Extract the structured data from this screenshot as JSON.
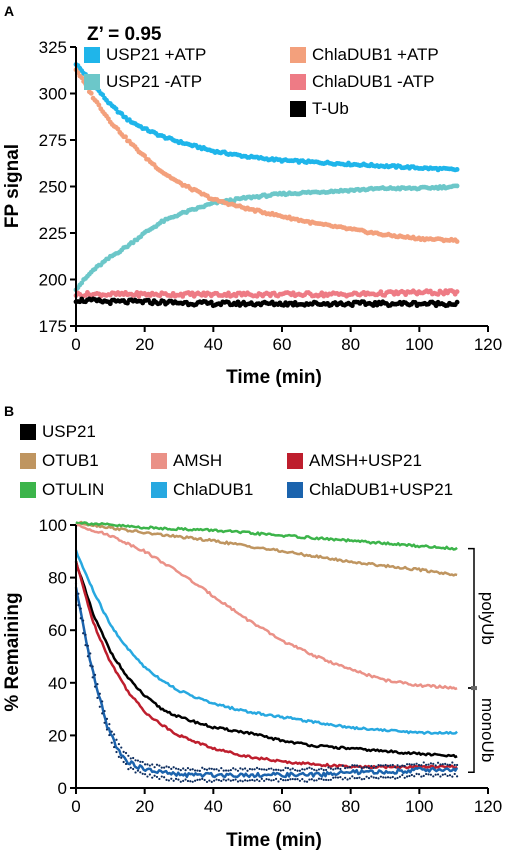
{
  "chart_data": [
    {
      "panel": "A",
      "type": "scatter",
      "annotation": "Z’ = 0.95",
      "xlabel": "Time (min)",
      "ylabel": "FP signal",
      "xlim": [
        0,
        120
      ],
      "ylim": [
        175,
        325
      ],
      "xticks": [
        0,
        20,
        40,
        60,
        80,
        100,
        120
      ],
      "yticks": [
        175,
        200,
        225,
        250,
        275,
        300,
        325
      ],
      "grid": false,
      "legend_position": "top",
      "series": [
        {
          "name": "USP21 +ATP",
          "color": "#1fb5ea",
          "x": [
            0,
            5,
            10,
            15,
            20,
            25,
            30,
            40,
            50,
            60,
            70,
            80,
            90,
            100,
            111
          ],
          "y": [
            316,
            305,
            294,
            286,
            281,
            277,
            274,
            269,
            266,
            264,
            263,
            262,
            261,
            260,
            259
          ]
        },
        {
          "name": "USP21 -ATP",
          "color": "#6cc7c9",
          "x": [
            0,
            5,
            10,
            15,
            20,
            25,
            30,
            40,
            50,
            60,
            70,
            80,
            90,
            100,
            111
          ],
          "y": [
            195,
            205,
            212,
            218,
            225,
            231,
            235,
            241,
            244,
            246,
            247,
            248,
            249,
            249,
            250
          ]
        },
        {
          "name": "ChlaDUB1 +ATP",
          "color": "#f3a07c",
          "x": [
            0,
            5,
            10,
            15,
            20,
            25,
            30,
            40,
            50,
            60,
            70,
            80,
            90,
            100,
            111
          ],
          "y": [
            313,
            298,
            285,
            275,
            266,
            258,
            252,
            243,
            238,
            234,
            230,
            227,
            224,
            222,
            221
          ]
        },
        {
          "name": "ChlaDUB1 -ATP",
          "color": "#ee7b85",
          "x": [
            0,
            10,
            20,
            40,
            60,
            80,
            100,
            111
          ],
          "y": [
            192,
            192,
            192,
            192,
            192,
            192,
            193,
            193
          ]
        },
        {
          "name": "T-Ub",
          "color": "#000000",
          "x": [
            0,
            10,
            20,
            40,
            60,
            80,
            100,
            111
          ],
          "y": [
            189,
            188,
            188,
            187,
            187,
            187,
            187,
            187
          ]
        }
      ]
    },
    {
      "panel": "B",
      "type": "line",
      "xlabel": "Time (min)",
      "ylabel": "% Remaining",
      "xlim": [
        0,
        120
      ],
      "ylim": [
        0,
        100
      ],
      "xticks": [
        0,
        20,
        40,
        60,
        80,
        100,
        120
      ],
      "yticks": [
        0,
        20,
        40,
        60,
        80,
        100
      ],
      "grid": false,
      "legend_position": "top",
      "brackets": [
        {
          "label": "polyUb",
          "from": 38,
          "to": 91
        },
        {
          "label": "monoUb",
          "from": 6,
          "to": 38
        }
      ],
      "series": [
        {
          "name": "USP21",
          "color": "#000000",
          "x": [
            0,
            5,
            10,
            15,
            20,
            25,
            30,
            40,
            50,
            60,
            70,
            80,
            90,
            100,
            111
          ],
          "y": [
            86,
            66,
            52,
            42,
            35,
            30,
            27,
            23,
            21,
            18,
            16,
            15,
            14,
            13,
            12
          ]
        },
        {
          "name": "OTUB1",
          "color": "#bf9560",
          "x": [
            0,
            10,
            20,
            40,
            60,
            80,
            100,
            111
          ],
          "y": [
            101,
            99,
            97,
            94,
            90,
            86,
            83,
            81
          ]
        },
        {
          "name": "AMSH",
          "color": "#ea9187",
          "x": [
            0,
            5,
            10,
            15,
            20,
            25,
            30,
            40,
            50,
            60,
            70,
            80,
            90,
            100,
            111
          ],
          "y": [
            100,
            98,
            96,
            93,
            90,
            86,
            82,
            73,
            64,
            56,
            50,
            45,
            41,
            39,
            38
          ]
        },
        {
          "name": "AMSH+USP21",
          "color": "#be1e2d",
          "x": [
            0,
            5,
            10,
            15,
            20,
            25,
            30,
            40,
            50,
            60,
            70,
            80,
            90,
            100,
            111
          ],
          "y": [
            86,
            63,
            48,
            37,
            29,
            24,
            20,
            15,
            12,
            10,
            9,
            8,
            8,
            8,
            8
          ]
        },
        {
          "name": "OTULIN",
          "color": "#3cb44a",
          "x": [
            0,
            10,
            20,
            40,
            60,
            80,
            100,
            111
          ],
          "y": [
            101,
            100,
            99,
            98,
            96,
            94,
            92,
            91
          ]
        },
        {
          "name": "ChlaDUB1",
          "color": "#27a8e0",
          "x": [
            0,
            5,
            10,
            15,
            20,
            25,
            30,
            40,
            50,
            60,
            70,
            80,
            90,
            100,
            111
          ],
          "y": [
            90,
            75,
            62,
            53,
            46,
            41,
            37,
            32,
            29,
            27,
            25,
            23,
            22,
            21,
            21
          ]
        },
        {
          "name": "ChlaDUB1+USP21",
          "color": "#1b63ad",
          "x": [
            0,
            3,
            6,
            9,
            12,
            15,
            20,
            25,
            30,
            40,
            50,
            60,
            70,
            80,
            90,
            100,
            111
          ],
          "y": [
            76,
            55,
            38,
            24,
            15,
            10,
            7,
            6,
            5,
            5,
            5,
            5,
            5,
            6,
            6,
            7,
            7
          ]
        }
      ]
    }
  ]
}
